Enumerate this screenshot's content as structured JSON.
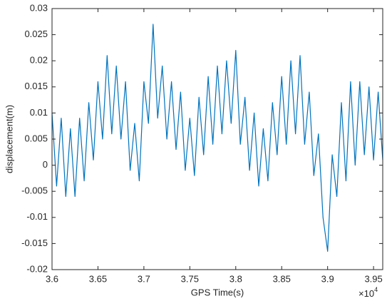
{
  "chart_data": {
    "type": "line",
    "x_label": "GPS Time(s)",
    "y_label": "displacement(m)",
    "x_multiplier": {
      "base": "×10",
      "exponent": "4"
    },
    "x": [
      36000,
      36050,
      36100,
      36150,
      36200,
      36250,
      36300,
      36350,
      36400,
      36450,
      36500,
      36550,
      36600,
      36650,
      36700,
      36750,
      36800,
      36850,
      36900,
      36950,
      37000,
      37050,
      37100,
      37150,
      37200,
      37250,
      37300,
      37350,
      37400,
      37450,
      37500,
      37550,
      37600,
      37650,
      37700,
      37750,
      37800,
      37850,
      37900,
      37950,
      38000,
      38050,
      38100,
      38150,
      38200,
      38250,
      38300,
      38350,
      38400,
      38450,
      38500,
      38550,
      38600,
      38650,
      38700,
      38750,
      38800,
      38850,
      38900,
      38950,
      39000,
      39050,
      39100,
      39150,
      39200,
      39250,
      39300,
      39350,
      39400,
      39450,
      39500,
      39550,
      39600
    ],
    "series": [
      {
        "color": "#0072bd",
        "values": [
          0.01,
          -0.004,
          0.009,
          -0.006,
          0.007,
          -0.006,
          0.009,
          -0.003,
          0.012,
          0.001,
          0.016,
          0.005,
          0.021,
          0.006,
          0.019,
          0.005,
          0.016,
          -0.001,
          0.008,
          -0.003,
          0.016,
          0.008,
          0.027,
          0.009,
          0.019,
          0.005,
          0.016,
          0.003,
          0.014,
          -0.001,
          0.009,
          -0.002,
          0.013,
          0.002,
          0.017,
          0.004,
          0.019,
          0.006,
          0.02,
          0.008,
          0.022,
          0.004,
          0.013,
          -0.001,
          0.01,
          -0.004,
          0.007,
          -0.003,
          0.012,
          0.002,
          0.017,
          0.004,
          0.02,
          0.006,
          0.021,
          0.004,
          0.014,
          -0.002,
          0.006,
          -0.01,
          -0.0165,
          0.002,
          -0.006,
          0.012,
          -0.003,
          0.016,
          0.0,
          0.016,
          0.002,
          0.015,
          0.001,
          0.014,
          0.001
        ]
      }
    ],
    "xlim": [
      36000,
      39600
    ],
    "xticks": [
      {
        "value": 36000,
        "label": "3.6"
      },
      {
        "value": 36500,
        "label": "3.65"
      },
      {
        "value": 37000,
        "label": "3.7"
      },
      {
        "value": 37500,
        "label": "3.75"
      },
      {
        "value": 38000,
        "label": "3.8"
      },
      {
        "value": 38500,
        "label": "3.85"
      },
      {
        "value": 39000,
        "label": "3.9"
      },
      {
        "value": 39500,
        "label": "3.95"
      }
    ],
    "ylim": [
      -0.02,
      0.03
    ],
    "yticks": [
      -0.02,
      -0.015,
      -0.01,
      -0.005,
      0,
      0.005,
      0.01,
      0.015,
      0.02,
      0.025,
      0.03
    ],
    "grid": false
  }
}
